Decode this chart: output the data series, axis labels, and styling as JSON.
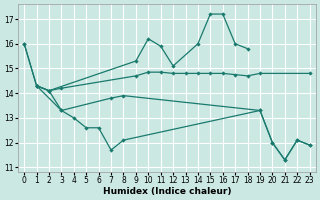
{
  "xlabel": "Humidex (Indice chaleur)",
  "bg": "#cce8e3",
  "grid_color": "#c8deda",
  "lc": "#1a7a6e",
  "ylim": [
    10.8,
    17.6
  ],
  "xlim": [
    -0.5,
    23.5
  ],
  "yticks": [
    11,
    12,
    13,
    14,
    15,
    16,
    17
  ],
  "xticks": [
    0,
    1,
    2,
    3,
    4,
    5,
    6,
    7,
    8,
    9,
    10,
    11,
    12,
    13,
    14,
    15,
    16,
    17,
    18,
    19,
    20,
    21,
    22,
    23
  ],
  "line1_x": [
    0,
    1,
    2,
    9,
    10,
    11,
    12,
    14,
    15,
    16,
    17,
    18
  ],
  "line1_y": [
    16.0,
    14.3,
    14.1,
    15.3,
    16.2,
    15.9,
    15.1,
    16.0,
    17.2,
    17.2,
    16.0,
    15.8
  ],
  "line2_x": [
    0,
    1,
    2,
    3,
    9,
    10,
    11,
    12,
    13,
    14,
    15,
    16,
    17,
    18,
    19,
    23
  ],
  "line2_y": [
    16.0,
    14.3,
    14.1,
    14.2,
    14.7,
    14.85,
    14.85,
    14.8,
    14.8,
    14.8,
    14.8,
    14.8,
    14.75,
    14.7,
    14.8,
    14.8
  ],
  "line3_x": [
    1,
    3,
    7,
    8,
    19,
    20,
    21,
    22,
    23
  ],
  "line3_y": [
    14.3,
    13.3,
    13.8,
    13.9,
    13.3,
    12.0,
    11.3,
    12.1,
    11.9
  ],
  "line4_x": [
    1,
    2,
    3,
    4,
    5,
    6,
    7,
    8,
    19,
    20,
    21,
    22,
    23
  ],
  "line4_y": [
    14.3,
    14.1,
    13.3,
    13.0,
    12.6,
    12.6,
    11.7,
    12.1,
    13.3,
    12.0,
    11.3,
    12.1,
    11.9
  ]
}
